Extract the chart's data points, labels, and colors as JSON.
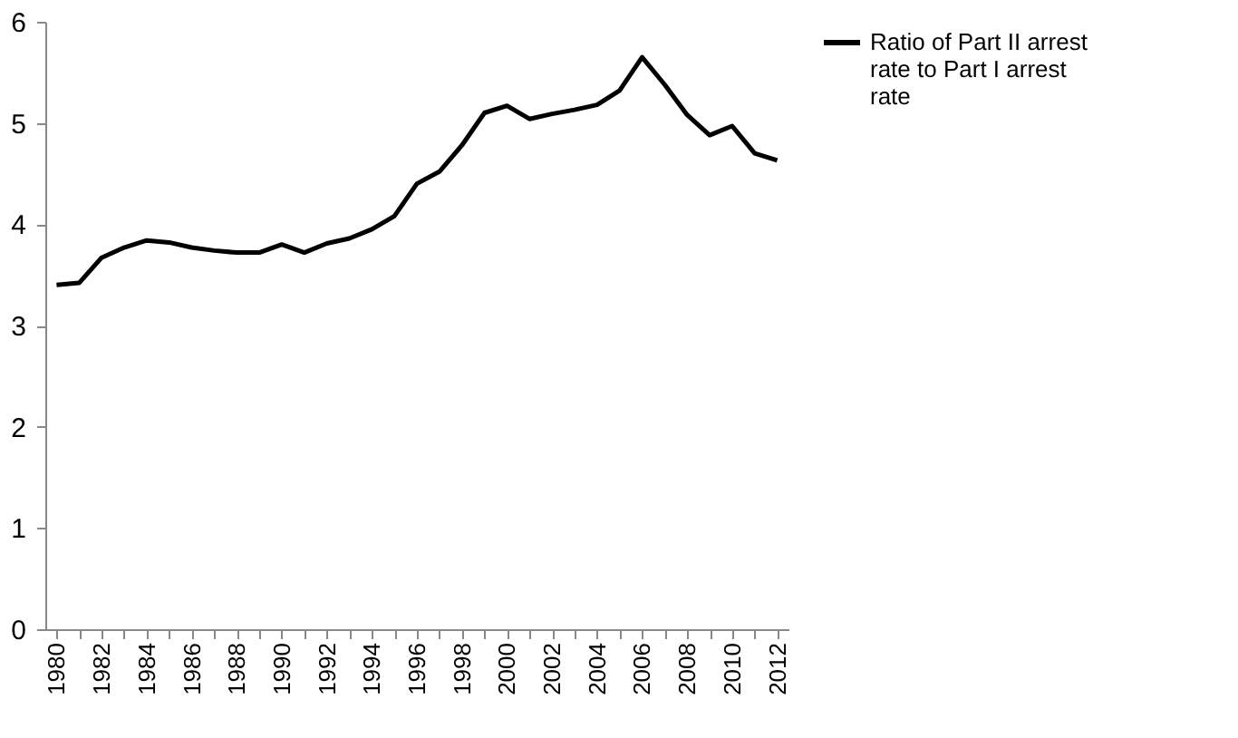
{
  "chart_data": {
    "type": "line",
    "categories": [
      "1980",
      null,
      "1982",
      null,
      "1984",
      null,
      "1986",
      null,
      "1988",
      null,
      "1990",
      null,
      "1992",
      null,
      "1994",
      null,
      "1996",
      null,
      "1998",
      null,
      "2000",
      null,
      "2002",
      null,
      "2004",
      null,
      "2006",
      null,
      "2008",
      null,
      "2010",
      null,
      "2012"
    ],
    "series": [
      {
        "name": "Ratio of Part II arrest rate to Part I arrest rate",
        "color": "#000000",
        "values": [
          3.4,
          3.42,
          3.67,
          3.77,
          3.84,
          3.82,
          3.77,
          3.74,
          3.72,
          3.72,
          3.8,
          3.72,
          3.81,
          3.86,
          3.95,
          4.08,
          4.4,
          4.52,
          4.78,
          5.1,
          5.17,
          5.04,
          5.09,
          5.13,
          5.18,
          5.32,
          5.65,
          5.38,
          5.08,
          4.88,
          4.97,
          4.7,
          4.63
        ]
      }
    ],
    "ylim": [
      0,
      6
    ],
    "yticks": [
      0,
      1,
      2,
      3,
      4,
      5,
      6
    ],
    "grid": false,
    "legend": "right",
    "marker": "none",
    "line_style": "solid"
  }
}
